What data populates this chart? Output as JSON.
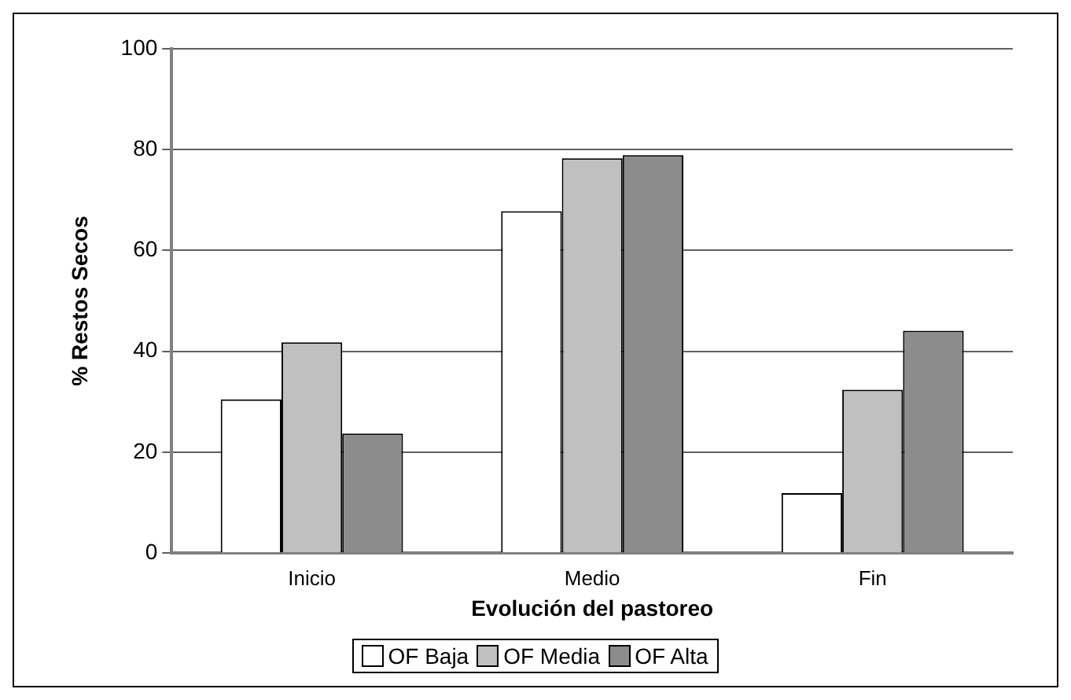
{
  "chart_data": {
    "type": "bar",
    "xlabel": "Evolución del pastoreo",
    "ylabel": "% Restos Secos",
    "categories": [
      "Inicio",
      "Medio",
      "Fin"
    ],
    "series": [
      {
        "name": "OF Baja",
        "color": "#ffffff",
        "values": [
          30.5,
          67.8,
          11.9
        ]
      },
      {
        "name": "OF Media",
        "color": "#c0c0c0",
        "values": [
          41.8,
          78.3,
          32.4
        ]
      },
      {
        "name": "OF Alta",
        "color": "#8c8c8c",
        "values": [
          23.7,
          78.9,
          44.1
        ]
      }
    ],
    "ylim": [
      0,
      100
    ],
    "yticks": [
      0,
      20,
      40,
      60,
      80,
      100
    ],
    "grid": "y",
    "legend": "bottom"
  }
}
